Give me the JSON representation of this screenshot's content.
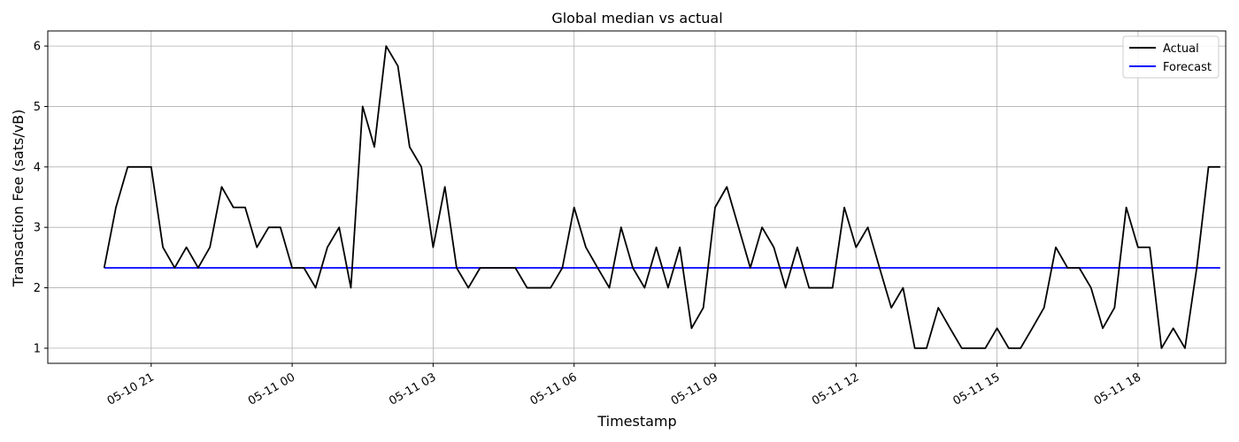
{
  "chart_data": {
    "type": "line",
    "title": "Global median vs actual",
    "xlabel": "Timestamp",
    "ylabel": "Transaction Fee (sats/vB)",
    "xlim": [
      "2024-05-10T18:48",
      "2024-05-11T19:52"
    ],
    "ylim": [
      0.75,
      6.25
    ],
    "yticks": [
      1,
      2,
      3,
      4,
      5,
      6
    ],
    "xticks": [
      {
        "t": "2024-05-10T21:00",
        "label": "05-10 21"
      },
      {
        "t": "2024-05-11T00:00",
        "label": "05-11 00"
      },
      {
        "t": "2024-05-11T03:00",
        "label": "05-11 03"
      },
      {
        "t": "2024-05-11T06:00",
        "label": "05-11 06"
      },
      {
        "t": "2024-05-11T09:00",
        "label": "05-11 09"
      },
      {
        "t": "2024-05-11T12:00",
        "label": "05-11 12"
      },
      {
        "t": "2024-05-11T15:00",
        "label": "05-11 15"
      },
      {
        "t": "2024-05-11T18:00",
        "label": "05-11 18"
      }
    ],
    "grid": true,
    "legend": "top-right",
    "series": [
      {
        "name": "Actual",
        "color": "#000000",
        "x": [
          "2024-05-10T20:00",
          "2024-05-10T20:15",
          "2024-05-10T20:30",
          "2024-05-10T20:45",
          "2024-05-10T21:00",
          "2024-05-10T21:15",
          "2024-05-10T21:30",
          "2024-05-10T21:45",
          "2024-05-10T22:00",
          "2024-05-10T22:15",
          "2024-05-10T22:30",
          "2024-05-10T22:45",
          "2024-05-10T23:00",
          "2024-05-10T23:15",
          "2024-05-10T23:30",
          "2024-05-10T23:45",
          "2024-05-11T00:00",
          "2024-05-11T00:15",
          "2024-05-11T00:30",
          "2024-05-11T00:45",
          "2024-05-11T01:00",
          "2024-05-11T01:15",
          "2024-05-11T01:30",
          "2024-05-11T01:45",
          "2024-05-11T02:00",
          "2024-05-11T02:15",
          "2024-05-11T02:30",
          "2024-05-11T02:45",
          "2024-05-11T03:00",
          "2024-05-11T03:15",
          "2024-05-11T03:30",
          "2024-05-11T03:45",
          "2024-05-11T04:00",
          "2024-05-11T04:15",
          "2024-05-11T04:30",
          "2024-05-11T04:45",
          "2024-05-11T05:00",
          "2024-05-11T05:15",
          "2024-05-11T05:30",
          "2024-05-11T05:45",
          "2024-05-11T06:00",
          "2024-05-11T06:15",
          "2024-05-11T06:30",
          "2024-05-11T06:45",
          "2024-05-11T07:00",
          "2024-05-11T07:15",
          "2024-05-11T07:30",
          "2024-05-11T07:45",
          "2024-05-11T08:00",
          "2024-05-11T08:15",
          "2024-05-11T08:30",
          "2024-05-11T08:45",
          "2024-05-11T09:00",
          "2024-05-11T09:15",
          "2024-05-11T09:30",
          "2024-05-11T09:45",
          "2024-05-11T10:00",
          "2024-05-11T10:15",
          "2024-05-11T10:30",
          "2024-05-11T10:45",
          "2024-05-11T11:00",
          "2024-05-11T11:15",
          "2024-05-11T11:30",
          "2024-05-11T11:45",
          "2024-05-11T12:00",
          "2024-05-11T12:15",
          "2024-05-11T12:30",
          "2024-05-11T12:45",
          "2024-05-11T13:00",
          "2024-05-11T13:15",
          "2024-05-11T13:30",
          "2024-05-11T13:45",
          "2024-05-11T14:00",
          "2024-05-11T14:15",
          "2024-05-11T14:30",
          "2024-05-11T14:45",
          "2024-05-11T15:00",
          "2024-05-11T15:15",
          "2024-05-11T15:30",
          "2024-05-11T15:45",
          "2024-05-11T16:00",
          "2024-05-11T16:15",
          "2024-05-11T16:30",
          "2024-05-11T16:45",
          "2024-05-11T17:00",
          "2024-05-11T17:15",
          "2024-05-11T17:30",
          "2024-05-11T17:45",
          "2024-05-11T18:00",
          "2024-05-11T18:15",
          "2024-05-11T18:30",
          "2024-05-11T18:45",
          "2024-05-11T19:00",
          "2024-05-11T19:15",
          "2024-05-11T19:30",
          "2024-05-11T19:45"
        ],
        "values": [
          2.33,
          3.33,
          4.0,
          4.0,
          4.0,
          2.67,
          2.33,
          2.67,
          2.33,
          2.67,
          3.67,
          3.33,
          3.33,
          2.67,
          3.0,
          3.0,
          2.33,
          2.33,
          2.0,
          2.67,
          3.0,
          2.0,
          5.0,
          4.33,
          6.0,
          5.67,
          4.33,
          4.0,
          2.67,
          3.67,
          2.33,
          2.0,
          2.33,
          2.33,
          2.33,
          2.33,
          2.0,
          2.0,
          2.0,
          2.33,
          3.33,
          2.67,
          2.33,
          2.0,
          3.0,
          2.33,
          2.0,
          2.67,
          2.0,
          2.67,
          1.33,
          1.67,
          3.33,
          3.67,
          3.0,
          2.33,
          3.0,
          2.67,
          2.0,
          2.67,
          2.0,
          2.0,
          2.0,
          3.33,
          2.67,
          3.0,
          2.33,
          1.67,
          2.0,
          1.0,
          1.0,
          1.67,
          1.33,
          1.0,
          1.0,
          1.0,
          1.33,
          1.0,
          1.0,
          1.33,
          1.67,
          2.67,
          2.33,
          2.33,
          2.0,
          1.33,
          1.67,
          3.33,
          2.67,
          2.67,
          1.0,
          1.33,
          1.0,
          2.33,
          4.0,
          4.0
        ]
      },
      {
        "name": "Forecast",
        "color": "#0000ff",
        "x": [
          "2024-05-10T20:00",
          "2024-05-11T19:45"
        ],
        "values": [
          2.33,
          2.33
        ]
      }
    ]
  }
}
